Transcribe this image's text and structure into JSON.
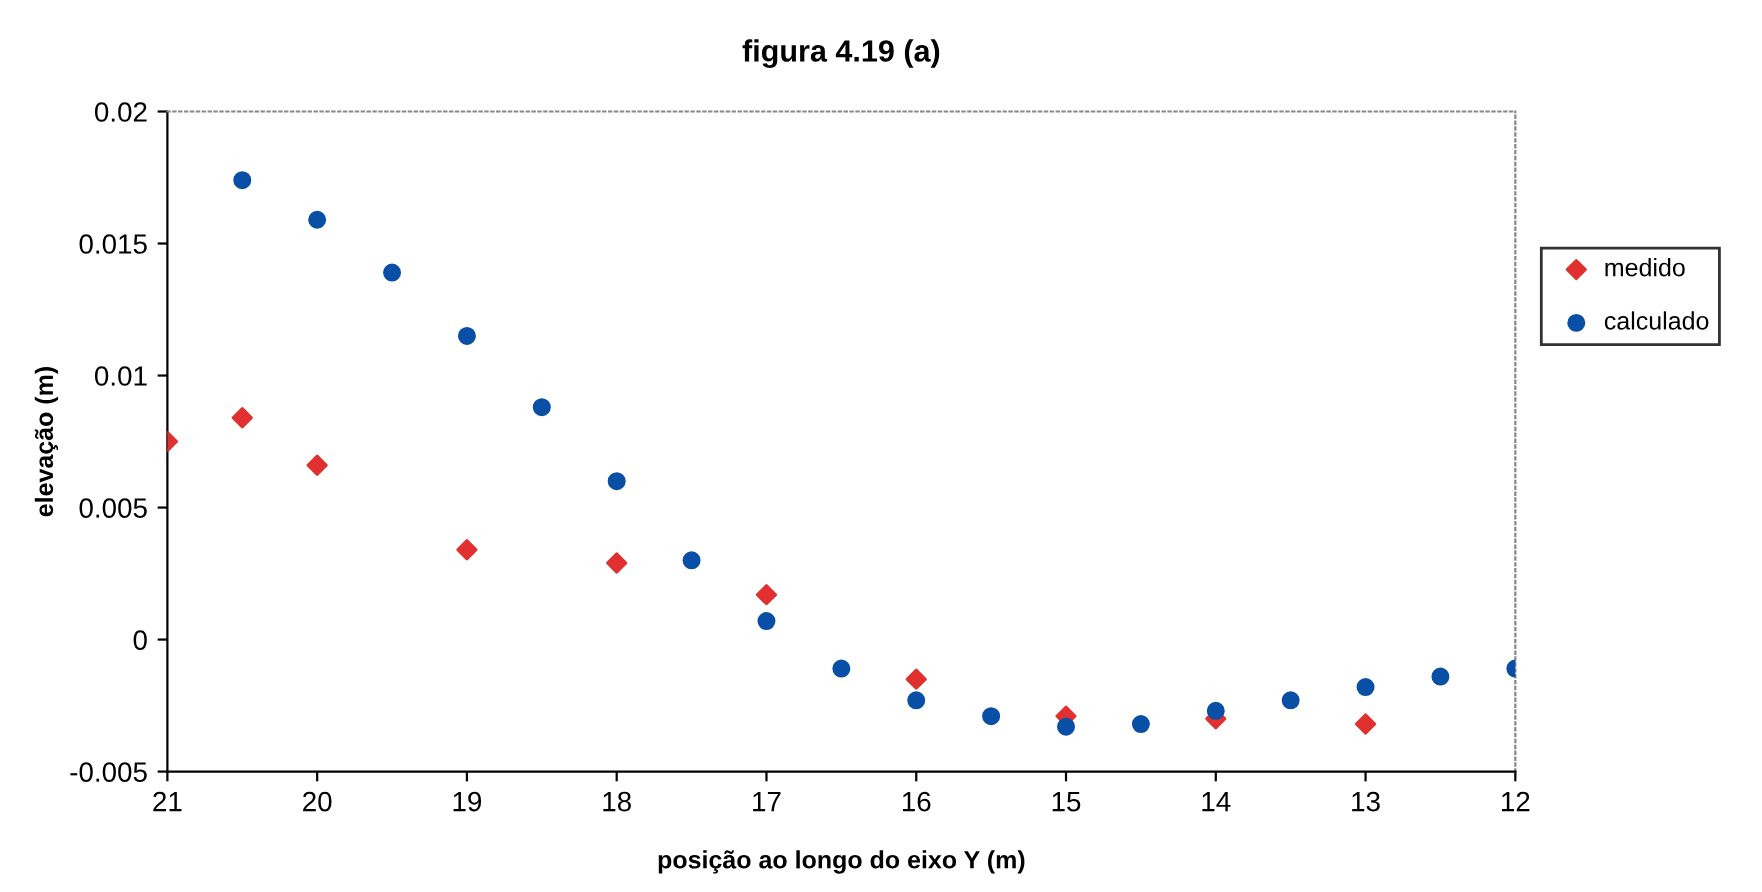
{
  "chart_data": {
    "type": "scatter",
    "title": "figura 4.19 (a)",
    "xlabel": "posição ao longo do eixo Y (m)",
    "ylabel": "elevação (m)",
    "xlim": [
      21,
      12
    ],
    "xticks": [
      21,
      20,
      19,
      18,
      17,
      16,
      15,
      14,
      13,
      12
    ],
    "ylim": [
      -0.005,
      0.02
    ],
    "yticks": [
      -0.005,
      0,
      0.005,
      0.01,
      0.015,
      0.02
    ],
    "grid": false,
    "legend": "right",
    "series": [
      {
        "name": "medido",
        "color": "#e03030",
        "marker": "diamond",
        "x": [
          21,
          20.5,
          20,
          19,
          18,
          17,
          16,
          15,
          14,
          13
        ],
        "values": [
          0.0075,
          0.0084,
          0.0066,
          0.0034,
          0.0029,
          0.0017,
          -0.0015,
          -0.0029,
          -0.003,
          -0.0032
        ]
      },
      {
        "name": "calculado",
        "color": "#0a4fa6",
        "marker": "circle",
        "x": [
          20.5,
          20,
          19.5,
          19,
          18.5,
          18,
          17.5,
          17,
          16.5,
          16,
          15.5,
          15,
          14.5,
          14,
          13.5,
          13,
          12.5,
          12
        ],
        "values": [
          0.0174,
          0.0159,
          0.0139,
          0.0115,
          0.0088,
          0.006,
          0.003,
          0.0007,
          -0.0011,
          -0.0023,
          -0.0029,
          -0.0033,
          -0.0032,
          -0.0027,
          -0.0023,
          -0.0018,
          -0.0014,
          -0.0011
        ]
      }
    ]
  }
}
